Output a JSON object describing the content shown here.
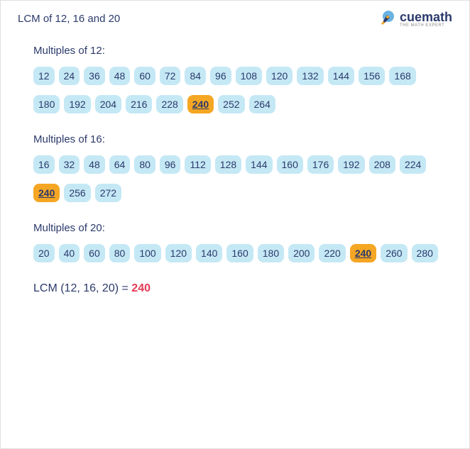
{
  "header": {
    "title": "LCM of 12, 16 and 20",
    "logo_text": "cuemath",
    "logo_tagline": "THE MATH EXPERT"
  },
  "sections": [
    {
      "title": "Multiples of 12:",
      "multiples": [
        12,
        24,
        36,
        48,
        60,
        72,
        84,
        96,
        108,
        120,
        132,
        144,
        156,
        168,
        180,
        192,
        204,
        216,
        228,
        240,
        252,
        264
      ],
      "highlight": 240
    },
    {
      "title": "Multiples of 16:",
      "multiples": [
        16,
        32,
        48,
        64,
        80,
        96,
        112,
        128,
        144,
        160,
        176,
        192,
        208,
        224,
        240,
        256,
        272
      ],
      "highlight": 240
    },
    {
      "title": "Multiples of 20:",
      "multiples": [
        20,
        40,
        60,
        80,
        100,
        120,
        140,
        160,
        180,
        200,
        220,
        240,
        260,
        280
      ],
      "highlight": 240
    }
  ],
  "result": {
    "label": "LCM (12, 16, 20) = ",
    "value": "240"
  },
  "colors": {
    "chip_bg": "#c5e8f5",
    "chip_text": "#2b3a6b",
    "highlight_bg": "#f5a623",
    "title_color": "#2b3a6b",
    "result_color": "#e73a54"
  }
}
